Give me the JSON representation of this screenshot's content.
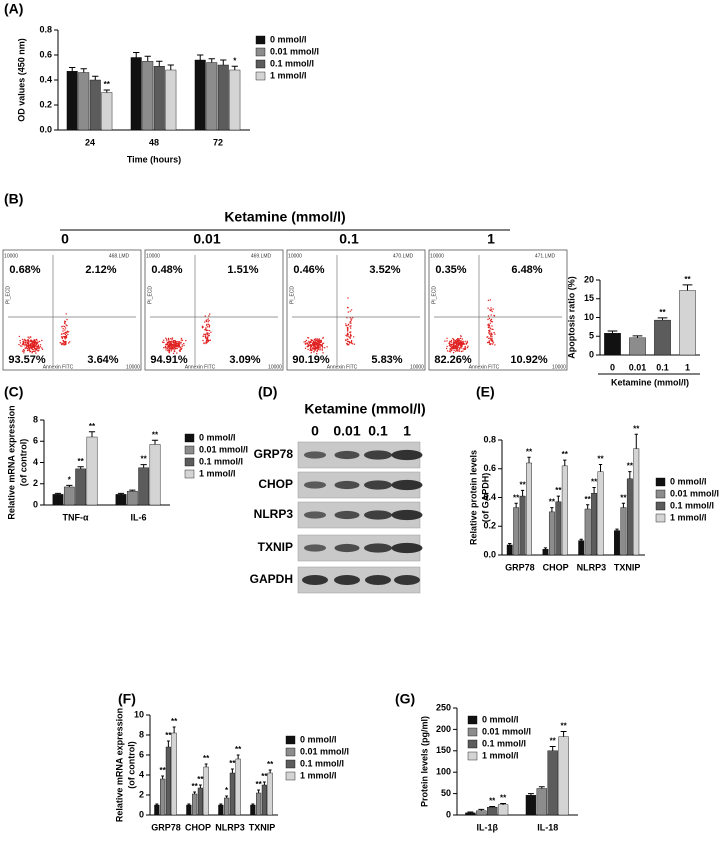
{
  "chart_data": [
    {
      "type": "bar",
      "panel": "(A)",
      "ylabel": "OD values (450 nm)",
      "xlabel": "Time (hours)",
      "categories": [
        "24",
        "48",
        "72"
      ],
      "series": [
        {
          "name": "0 mmol/l",
          "color": "#111111",
          "values": [
            0.47,
            0.58,
            0.56
          ],
          "errors": [
            0.03,
            0.04,
            0.04
          ]
        },
        {
          "name": "0.01 mmol/l",
          "color": "#8c8c8c",
          "values": [
            0.46,
            0.55,
            0.54
          ],
          "errors": [
            0.03,
            0.04,
            0.03
          ]
        },
        {
          "name": "0.1 mmol/l",
          "color": "#5c5c5c",
          "values": [
            0.4,
            0.51,
            0.52
          ],
          "errors": [
            0.03,
            0.04,
            0.04
          ]
        },
        {
          "name": "1 mmol/l",
          "color": "#d4d4d4",
          "values": [
            0.3,
            0.48,
            0.48
          ],
          "errors": [
            0.02,
            0.04,
            0.03
          ],
          "annotations": [
            "**",
            null,
            "*"
          ]
        }
      ],
      "ylim": [
        0,
        0.8
      ],
      "yticks": [
        {
          "value": 0,
          "label": "0.0"
        },
        0.2,
        0.4,
        0.6,
        0.8
      ]
    },
    {
      "type": "bar",
      "ylabel": "Apoptosis ratio (%)",
      "xlabel": "Ketamine (mmol/l)",
      "categories": [
        "0",
        "0.01",
        "0.1",
        "1"
      ],
      "values": [
        5.8,
        4.6,
        9.3,
        17.2
      ],
      "errors": [
        0.6,
        0.5,
        0.6,
        1.5
      ],
      "colors": [
        "#111111",
        "#8c8c8c",
        "#5c5c5c",
        "#d4d4d4"
      ],
      "annotations": [
        null,
        null,
        "**",
        "**"
      ],
      "ylim": [
        0,
        20
      ],
      "yticks": [
        0,
        5,
        10,
        15,
        20
      ]
    },
    {
      "type": "bar",
      "panel": "(C)",
      "ylabel": [
        "Relative mRNA expression",
        "(of control)"
      ],
      "categories": [
        "TNF-α",
        "IL-6"
      ],
      "series": [
        {
          "name": "0 mmol/l",
          "color": "#111111",
          "values": [
            1.0,
            1.0
          ],
          "errors": [
            0.1,
            0.1
          ]
        },
        {
          "name": "0.01 mmol/l",
          "color": "#8c8c8c",
          "values": [
            1.7,
            1.3
          ],
          "errors": [
            0.15,
            0.1
          ],
          "annotations": [
            "*",
            null
          ]
        },
        {
          "name": "0.1 mmol/l",
          "color": "#5c5c5c",
          "values": [
            3.4,
            3.5
          ],
          "errors": [
            0.2,
            0.3
          ],
          "annotations": [
            "**",
            "**"
          ]
        },
        {
          "name": "1 mmol/l",
          "color": "#d4d4d4",
          "values": [
            6.4,
            5.7
          ],
          "errors": [
            0.5,
            0.4
          ],
          "annotations": [
            "**",
            "**"
          ]
        }
      ],
      "ylim": [
        0,
        8
      ],
      "yticks": [
        0,
        2,
        4,
        6,
        8
      ]
    },
    {
      "type": "bar",
      "panel": "(E)",
      "ylabel": [
        "Relative protein levels",
        "(of GAPDH)"
      ],
      "categories": [
        "GRP78",
        "CHOP",
        "NLRP3",
        "TXNIP"
      ],
      "series": [
        {
          "name": "0 mmol/l",
          "color": "#111111",
          "values": [
            0.07,
            0.04,
            0.1,
            0.17
          ],
          "errors": [
            0.01,
            0.01,
            0.01,
            0.01
          ]
        },
        {
          "name": "0.01 mmol/l",
          "color": "#8c8c8c",
          "values": [
            0.33,
            0.3,
            0.32,
            0.33
          ],
          "errors": [
            0.03,
            0.03,
            0.03,
            0.03
          ],
          "annotations": [
            "**",
            "**",
            "**",
            "**"
          ]
        },
        {
          "name": "0.1 mmol/l",
          "color": "#5c5c5c",
          "values": [
            0.41,
            0.37,
            0.43,
            0.53
          ],
          "errors": [
            0.04,
            0.04,
            0.04,
            0.05
          ],
          "annotations": [
            "**",
            "**",
            "**",
            "**"
          ]
        },
        {
          "name": "1 mmol/l",
          "color": "#d4d4d4",
          "values": [
            0.64,
            0.62,
            0.58,
            0.74
          ],
          "errors": [
            0.04,
            0.04,
            0.05,
            0.1
          ],
          "annotations": [
            "**",
            "**",
            "**",
            "**"
          ]
        }
      ],
      "ylim": [
        0,
        0.8
      ],
      "yticks": [
        {
          "value": 0,
          "label": "0.0"
        },
        0.2,
        0.4,
        0.6,
        0.8
      ]
    },
    {
      "type": "bar",
      "panel": "(F)",
      "ylabel": [
        "Relative mRNA expression",
        "(of control)"
      ],
      "categories": [
        "GRP78",
        "CHOP",
        "NLRP3",
        "TXNIP"
      ],
      "series": [
        {
          "name": "0 mmol/l",
          "color": "#111111",
          "values": [
            1.0,
            1.0,
            1.0,
            1.0
          ],
          "errors": [
            0.1,
            0.1,
            0.1,
            0.1
          ]
        },
        {
          "name": "0.01 mmol/l",
          "color": "#8c8c8c",
          "values": [
            3.6,
            2.1,
            1.7,
            2.2
          ],
          "errors": [
            0.3,
            0.2,
            0.2,
            0.3
          ],
          "annotations": [
            "**",
            "**",
            "*",
            "**"
          ]
        },
        {
          "name": "0.1 mmol/l",
          "color": "#5c5c5c",
          "values": [
            6.8,
            2.7,
            4.2,
            3.0
          ],
          "errors": [
            0.6,
            0.3,
            0.4,
            0.3
          ],
          "annotations": [
            "**",
            "**",
            "**",
            "**"
          ]
        },
        {
          "name": "1 mmol/l",
          "color": "#d4d4d4",
          "values": [
            8.2,
            4.8,
            5.6,
            4.2
          ],
          "errors": [
            0.6,
            0.3,
            0.4,
            0.3
          ],
          "annotations": [
            "**",
            "**",
            "**",
            "**"
          ]
        }
      ],
      "ylim": [
        0,
        10
      ],
      "yticks": [
        0,
        2,
        4,
        6,
        8,
        10
      ]
    },
    {
      "type": "bar",
      "panel": "(G)",
      "ylabel": "Protein levels (pg/ml)",
      "categories": [
        "IL-1β",
        "IL-18"
      ],
      "series": [
        {
          "name": "0 mmol/l",
          "color": "#111111",
          "values": [
            5,
            46
          ],
          "errors": [
            2,
            4
          ]
        },
        {
          "name": "0.01 mmol/l",
          "color": "#8c8c8c",
          "values": [
            10,
            62
          ],
          "errors": [
            3,
            4
          ]
        },
        {
          "name": "0.1 mmol/l",
          "color": "#5c5c5c",
          "values": [
            18,
            150
          ],
          "errors": [
            2,
            10
          ],
          "annotations": [
            "**",
            "**"
          ]
        },
        {
          "name": "1 mmol/l",
          "color": "#d4d4d4",
          "values": [
            24,
            183
          ],
          "errors": [
            3,
            12
          ],
          "annotations": [
            "**",
            "**"
          ]
        }
      ],
      "ylim": [
        0,
        250
      ],
      "yticks": [
        0,
        50,
        100,
        150,
        200,
        250
      ]
    }
  ],
  "flow_cytometry": {
    "panel": "(B)",
    "title": "Ketamine (mmol/l)",
    "x_axis_label": "Annexin FITC",
    "y_axis_label": "PI_ECD",
    "axis_max": "10000",
    "plots": [
      {
        "label": "0",
        "file": "468.LMD",
        "quadrants": [
          "0.68%",
          "2.12%",
          "93.57%",
          "3.64%"
        ]
      },
      {
        "label": "0.01",
        "file": "469.LMD",
        "quadrants": [
          "0.48%",
          "1.51%",
          "94.91%",
          "3.09%"
        ]
      },
      {
        "label": "0.1",
        "file": "470.LMD",
        "quadrants": [
          "0.46%",
          "3.52%",
          "90.19%",
          "5.83%"
        ]
      },
      {
        "label": "1",
        "file": "471.LMD",
        "quadrants": [
          "0.35%",
          "6.48%",
          "82.26%",
          "10.92%"
        ]
      }
    ]
  },
  "western_blot": {
    "panel": "(D)",
    "title": "Ketamine (mmol/l)",
    "lanes": [
      "0",
      "0.01",
      "0.1",
      "1"
    ],
    "rows": [
      "GRP78",
      "CHOP",
      "NLRP3",
      "TXNIP",
      "GAPDH"
    ]
  }
}
